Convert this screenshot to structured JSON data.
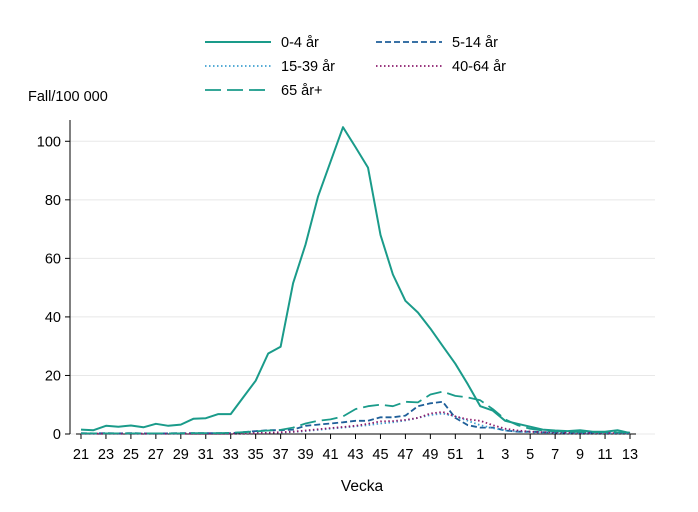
{
  "chart_data": {
    "type": "line",
    "ylabel": "Fall/100 000",
    "xlabel": "Vecka",
    "ylim": [
      0,
      110
    ],
    "yticks": [
      0,
      20,
      40,
      60,
      80,
      100
    ],
    "grid": true,
    "legend_position": "top",
    "x": [
      "21",
      "22",
      "23",
      "24",
      "25",
      "26",
      "27",
      "28",
      "29",
      "30",
      "31",
      "32",
      "33",
      "34",
      "35",
      "36",
      "37",
      "38",
      "39",
      "40",
      "41",
      "42",
      "43",
      "44",
      "45",
      "46",
      "47",
      "48",
      "49",
      "50",
      "51",
      "52",
      "1",
      "2",
      "3",
      "4",
      "5",
      "6",
      "7",
      "8",
      "9",
      "10",
      "11",
      "12",
      "13"
    ],
    "xtick_labels": [
      "21",
      "23",
      "25",
      "27",
      "29",
      "31",
      "33",
      "35",
      "37",
      "39",
      "41",
      "43",
      "45",
      "47",
      "49",
      "51",
      "1",
      "3",
      "5",
      "7",
      "9",
      "11",
      "13"
    ],
    "series": [
      {
        "name": "0-4 år",
        "color": "#1a9b8a",
        "dash": "solid",
        "values": [
          1.5,
          1.3,
          2.8,
          2.5,
          2.9,
          2.3,
          3.5,
          2.8,
          3.2,
          5.2,
          5.4,
          6.8,
          6.8,
          12.5,
          18.2,
          27.5,
          29.8,
          51.5,
          64.8,
          81.2,
          93.0,
          104.8,
          98.0,
          91.0,
          68.0,
          54.5,
          45.5,
          41.5,
          36.0,
          30.0,
          24.0,
          17.0,
          9.5,
          8.0,
          4.5,
          3.5,
          2.5,
          1.5,
          1.2,
          1.0,
          1.3,
          0.8,
          0.8,
          1.3,
          0.3
        ]
      },
      {
        "name": "5-14 år",
        "color": "#1f5f99",
        "dash": "short",
        "values": [
          0.3,
          0.2,
          0.3,
          0.2,
          0.3,
          0.2,
          0.2,
          0.2,
          0.3,
          0.3,
          0.3,
          0.3,
          0.3,
          0.6,
          1.0,
          1.3,
          1.3,
          1.5,
          2.8,
          3.2,
          3.6,
          4.0,
          4.5,
          4.5,
          5.7,
          5.7,
          6.3,
          9.5,
          10.5,
          11.0,
          5.5,
          3.0,
          2.2,
          2.2,
          1.2,
          0.8,
          0.8,
          0.6,
          0.5,
          0.4,
          0.4,
          0.4,
          0.3,
          0.3,
          0.3
        ]
      },
      {
        "name": "15-39 år",
        "color": "#3fa0d0",
        "dash": "dot",
        "values": [
          0.1,
          0.1,
          0.1,
          0.1,
          0.1,
          0.1,
          0.1,
          0.1,
          0.1,
          0.1,
          0.1,
          0.1,
          0.1,
          0.2,
          0.3,
          0.4,
          0.5,
          0.7,
          1.0,
          1.4,
          1.8,
          2.2,
          2.6,
          3.0,
          3.6,
          4.0,
          4.6,
          5.5,
          6.5,
          7.0,
          6.0,
          4.5,
          3.0,
          2.0,
          1.2,
          0.8,
          0.6,
          0.4,
          0.3,
          0.2,
          0.2,
          0.2,
          0.2,
          0.2,
          0.2
        ]
      },
      {
        "name": "40-64 år",
        "color": "#8b1a6b",
        "dash": "dot",
        "values": [
          0.1,
          0.1,
          0.1,
          0.1,
          0.1,
          0.1,
          0.1,
          0.1,
          0.1,
          0.1,
          0.1,
          0.1,
          0.1,
          0.2,
          0.3,
          0.4,
          0.6,
          0.8,
          1.2,
          1.6,
          2.0,
          2.4,
          2.8,
          3.5,
          4.3,
          4.4,
          4.8,
          5.5,
          7.0,
          7.5,
          6.0,
          5.0,
          4.5,
          3.0,
          1.8,
          1.2,
          0.8,
          0.6,
          0.5,
          0.4,
          0.4,
          0.3,
          0.3,
          0.3,
          0.3
        ]
      },
      {
        "name": "65 år+",
        "color": "#1a9b8a",
        "dash": "long",
        "values": [
          0.2,
          0.2,
          0.2,
          0.2,
          0.2,
          0.2,
          0.2,
          0.2,
          0.2,
          0.3,
          0.3,
          0.3,
          0.4,
          0.6,
          0.9,
          1.2,
          1.4,
          2.2,
          3.6,
          4.5,
          5.0,
          6.0,
          8.5,
          9.5,
          10.0,
          9.5,
          11.0,
          10.8,
          13.5,
          14.5,
          13.0,
          12.5,
          11.5,
          8.5,
          5.0,
          3.0,
          1.8,
          1.2,
          0.9,
          0.8,
          0.7,
          0.6,
          0.6,
          0.5,
          0.5
        ]
      }
    ]
  }
}
